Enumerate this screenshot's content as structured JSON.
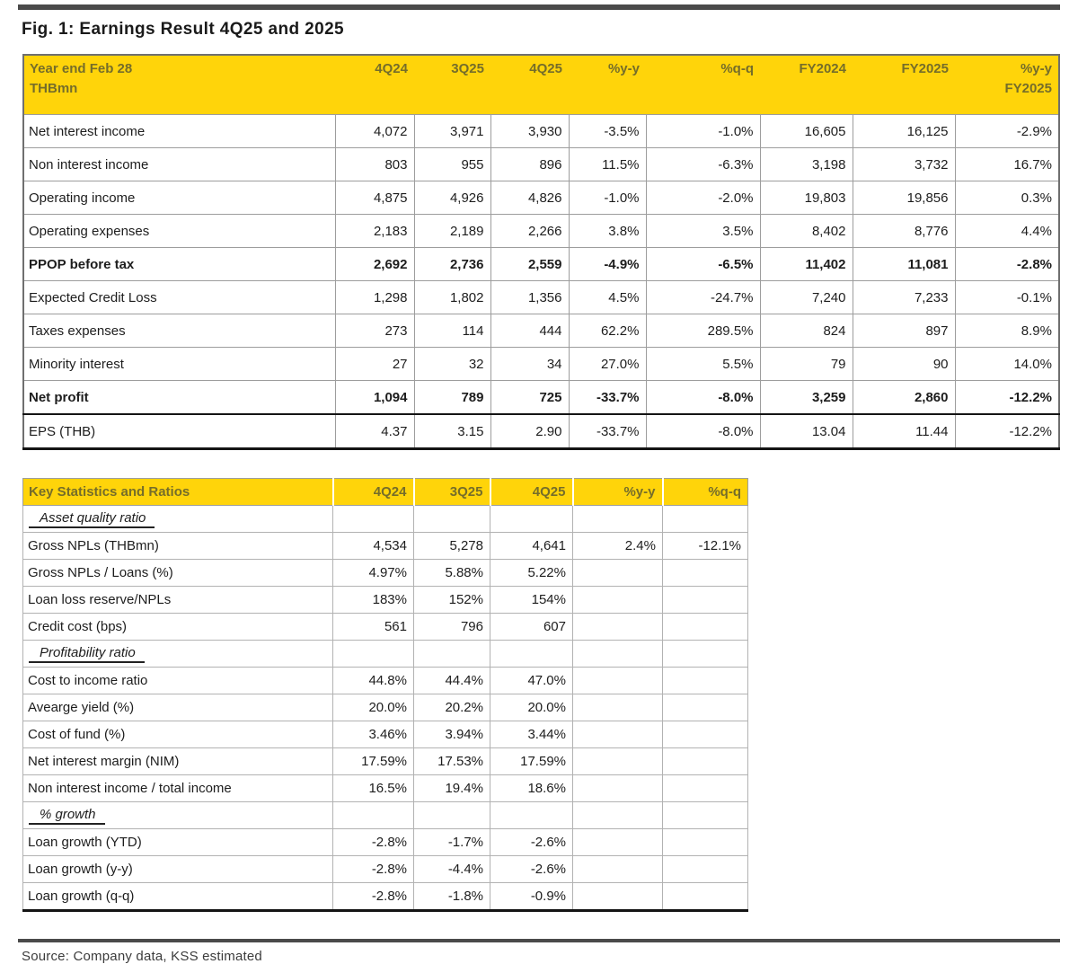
{
  "title": "Fig. 1:  Earnings Result 4Q25 and 2025",
  "colors": {
    "header_yellow": "#FFD40A",
    "header_text_olive": "#756D2A",
    "rule_gray": "#4A4A4A",
    "emphasis_border_black": "#141414"
  },
  "table1": {
    "header": {
      "label_line1": "Year end Feb 28",
      "label_line2": "THBmn",
      "cols": [
        "4Q24",
        "3Q25",
        "4Q25",
        "%y-y",
        "%q-q",
        "FY2024",
        "FY2025"
      ],
      "last_col_line1": "%y-y",
      "last_col_line2": "FY2025"
    },
    "rows": [
      {
        "label": "Net interest income",
        "values": [
          "4,072",
          "3,971",
          "3,930",
          "-3.5%",
          "-1.0%",
          "16,605",
          "16,125",
          "-2.9%"
        ],
        "bold": false
      },
      {
        "label": "Non interest income",
        "values": [
          "803",
          "955",
          "896",
          "11.5%",
          "-6.3%",
          "3,198",
          "3,732",
          "16.7%"
        ],
        "bold": false
      },
      {
        "label": "Operating income",
        "values": [
          "4,875",
          "4,926",
          "4,826",
          "-1.0%",
          "-2.0%",
          "19,803",
          "19,856",
          "0.3%"
        ],
        "bold": false
      },
      {
        "label": "Operating expenses",
        "values": [
          "2,183",
          "2,189",
          "2,266",
          "3.8%",
          "3.5%",
          "8,402",
          "8,776",
          "4.4%"
        ],
        "bold": false
      },
      {
        "label": "PPOP before tax",
        "values": [
          "2,692",
          "2,736",
          "2,559",
          "-4.9%",
          "-6.5%",
          "11,402",
          "11,081",
          "-2.8%"
        ],
        "bold": true
      },
      {
        "label": "Expected Credit Loss",
        "values": [
          "1,298",
          "1,802",
          "1,356",
          "4.5%",
          "-24.7%",
          "7,240",
          "7,233",
          "-0.1%"
        ],
        "bold": false
      },
      {
        "label": "Taxes expenses",
        "values": [
          "273",
          "114",
          "444",
          "62.2%",
          "289.5%",
          "824",
          "897",
          "8.9%"
        ],
        "bold": false
      },
      {
        "label": "Minority interest",
        "values": [
          "27",
          "32",
          "34",
          "27.0%",
          "5.5%",
          "79",
          "90",
          "14.0%"
        ],
        "bold": false
      },
      {
        "label": "Net profit",
        "values": [
          "1,094",
          "789",
          "725",
          "-33.7%",
          "-8.0%",
          "3,259",
          "2,860",
          "-12.2%"
        ],
        "bold": true
      },
      {
        "label": "EPS (THB)",
        "values": [
          "4.37",
          "3.15",
          "2.90",
          "-33.7%",
          "-8.0%",
          "13.04",
          "11.44",
          "-12.2%"
        ],
        "bold": false,
        "eps": true
      }
    ]
  },
  "table2": {
    "header": {
      "label": "Key Statistics and Ratios",
      "cols": [
        "4Q24",
        "3Q25",
        "4Q25",
        "%y-y",
        "%q-q"
      ]
    },
    "rows": [
      {
        "label": "Asset quality ratio",
        "section": true
      },
      {
        "label": "Gross NPLs (THBmn)",
        "values": [
          "4,534",
          "5,278",
          "4,641",
          "2.4%",
          "-12.1%"
        ]
      },
      {
        "label": "Gross NPLs / Loans (%)",
        "values": [
          "4.97%",
          "5.88%",
          "5.22%",
          "",
          ""
        ]
      },
      {
        "label": "Loan loss reserve/NPLs",
        "values": [
          "183%",
          "152%",
          "154%",
          "",
          ""
        ]
      },
      {
        "label": "Credit cost (bps)",
        "values": [
          "561",
          "796",
          "607",
          "",
          ""
        ]
      },
      {
        "label": "Profitability ratio",
        "section": true
      },
      {
        "label": "Cost to income ratio",
        "values": [
          "44.8%",
          "44.4%",
          "47.0%",
          "",
          ""
        ]
      },
      {
        "label": "Avearge yield (%)",
        "values": [
          "20.0%",
          "20.2%",
          "20.0%",
          "",
          ""
        ]
      },
      {
        "label": "Cost of fund (%)",
        "values": [
          "3.46%",
          "3.94%",
          "3.44%",
          "",
          ""
        ]
      },
      {
        "label": "Net interest margin (NIM)",
        "values": [
          "17.59%",
          "17.53%",
          "17.59%",
          "",
          ""
        ]
      },
      {
        "label": "Non interest income / total income",
        "values": [
          "16.5%",
          "19.4%",
          "18.6%",
          "",
          ""
        ]
      },
      {
        "label": "% growth",
        "section": true
      },
      {
        "label": "Loan growth (YTD)",
        "values": [
          "-2.8%",
          "-1.7%",
          "-2.6%",
          "",
          ""
        ]
      },
      {
        "label": "Loan growth (y-y)",
        "values": [
          "-2.8%",
          "-4.4%",
          "-2.6%",
          "",
          ""
        ]
      },
      {
        "label": "Loan growth (q-q)",
        "values": [
          "-2.8%",
          "-1.8%",
          "-0.9%",
          "",
          ""
        ]
      }
    ]
  },
  "footer": {
    "source": "Source: Company data, KSS estimated"
  }
}
